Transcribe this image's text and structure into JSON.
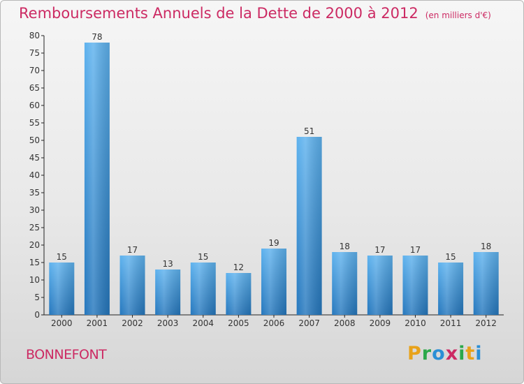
{
  "header": {
    "title": "Remboursements Annuels de la Dette de 2000 à 2012",
    "unit": "(en milliers d'€)"
  },
  "commune": "BONNEFONT",
  "logo": {
    "letters": [
      "P",
      "r",
      "o",
      "x",
      "i",
      "t",
      "i"
    ],
    "colors": [
      "#e8a21a",
      "#2ba84a",
      "#2a8fd6",
      "#cc2a63",
      "#2ba84a",
      "#e8a21a",
      "#2a8fd6"
    ]
  },
  "chart_data": {
    "type": "bar",
    "title": "Remboursements Annuels de la Dette de 2000 à 2012",
    "xlabel": "",
    "ylabel": "",
    "categories": [
      "2000",
      "2001",
      "2002",
      "2003",
      "2004",
      "2005",
      "2006",
      "2007",
      "2008",
      "2009",
      "2010",
      "2011",
      "2012"
    ],
    "values": [
      15,
      78,
      17,
      13,
      15,
      12,
      19,
      51,
      18,
      17,
      17,
      15,
      18
    ],
    "ylim": [
      0,
      80
    ],
    "yticks": [
      0,
      5,
      10,
      15,
      20,
      25,
      30,
      35,
      40,
      45,
      50,
      55,
      60,
      65,
      70,
      75,
      80
    ],
    "grid": false,
    "bar_color": "#3a94dc"
  }
}
